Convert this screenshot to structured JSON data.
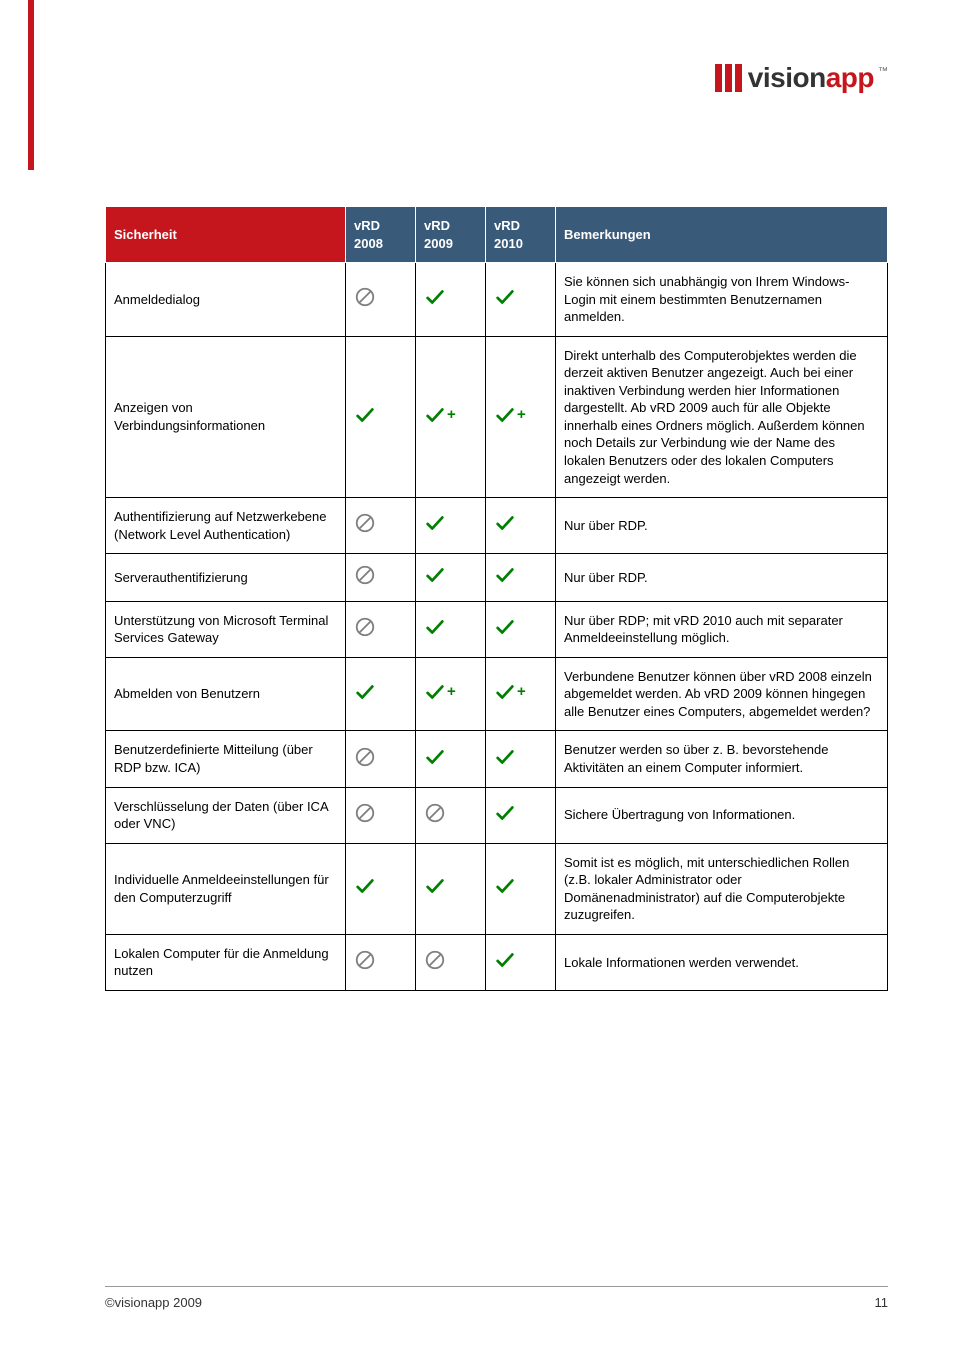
{
  "brand": {
    "name_dark": "vision",
    "name_red": "app",
    "tm": "™",
    "bar_color": "#c4161c"
  },
  "table": {
    "headers": {
      "feature": "Sicherheit",
      "v08": "vRD 2008",
      "v09": "vRD 2009",
      "v10": "vRD 2010",
      "remarks": "Bemerkungen"
    },
    "rows": [
      {
        "feature": "Anmeldedialog",
        "v08": "no",
        "v09": "yes",
        "v10": "yes",
        "remark": "Sie können sich unabhängig von Ihrem Windows-Login mit einem bestimmten Benutzernamen anmelden."
      },
      {
        "feature": "Anzeigen von Verbindungsinformationen",
        "v08": "yes",
        "v09": "plus",
        "v10": "plus",
        "remark": "Direkt unterhalb des Computerobjektes werden die derzeit aktiven Benutzer angezeigt. Auch bei einer inaktiven Verbindung werden hier Informationen dargestellt. Ab vRD 2009 auch für alle Objekte innerhalb eines Ordners möglich. Außerdem können noch Details zur Verbindung wie der Name des lokalen Benutzers oder des lokalen Computers angezeigt werden."
      },
      {
        "feature": "Authentifizierung auf Netzwerkebene (Network Level Authentication)",
        "v08": "no",
        "v09": "yes",
        "v10": "yes",
        "remark": "Nur über RDP."
      },
      {
        "feature": "Serverauthentifizierung",
        "v08": "no",
        "v09": "yes",
        "v10": "yes",
        "remark": "Nur über RDP."
      },
      {
        "feature": "Unterstützung von Microsoft Terminal Services Gateway",
        "v08": "no",
        "v09": "yes",
        "v10": "yes",
        "remark": "Nur über RDP; mit vRD 2010 auch mit separater Anmeldeeinstellung möglich."
      },
      {
        "feature": "Abmelden von Benutzern",
        "v08": "yes",
        "v09": "plus",
        "v10": "plus",
        "remark": "Verbundene Benutzer können über vRD 2008 einzeln abgemeldet werden. Ab vRD 2009 können hingegen alle Benutzer eines Computers, abgemeldet werden?"
      },
      {
        "feature": "Benutzerdefinierte Mitteilung (über RDP bzw. ICA)",
        "v08": "no",
        "v09": "yes",
        "v10": "yes",
        "remark": "Benutzer werden so über z. B. bevorstehende Aktivitäten an einem Computer informiert."
      },
      {
        "feature": "Verschlüsselung der Daten (über ICA oder VNC)",
        "v08": "no",
        "v09": "no",
        "v10": "yes",
        "remark": "Sichere Übertragung von Informationen."
      },
      {
        "feature": "Individuelle Anmeldeeinstellungen für den Computerzugriff",
        "v08": "yes",
        "v09": "yes",
        "v10": "yes",
        "remark": "Somit ist es möglich, mit unterschiedlichen Rollen (z.B. lokaler Administrator oder Domänenadministrator) auf die Computerobjekte zuzugreifen."
      },
      {
        "feature": "Lokalen Computer für die Anmeldung nutzen",
        "v08": "no",
        "v09": "no",
        "v10": "yes",
        "remark": "Lokale Informationen werden verwendet."
      }
    ]
  },
  "footer": {
    "copyright": "©visionapp 2009",
    "page": "11"
  },
  "colors": {
    "header_red": "#c4161c",
    "header_blue": "#3a5a7a",
    "check": "#008000",
    "forbid": "#808080"
  }
}
